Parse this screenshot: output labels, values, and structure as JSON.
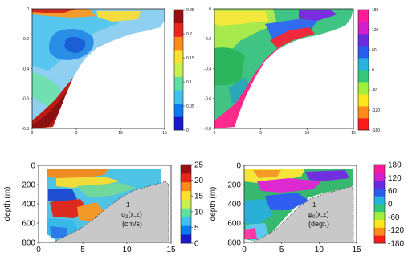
{
  "chart_data": [
    {
      "type": "heatmap",
      "xticks": [
        "0",
        "5",
        "10",
        "15"
      ],
      "yticks": [
        "0",
        "-0.2",
        "-0.4",
        "-0.6",
        "-0.8"
      ],
      "colorbar": {
        "ticks": [
          "0.25",
          "0.2",
          "0.15",
          "0.1",
          "0.05",
          "0"
        ],
        "vmin": 0,
        "vmax": 0.25
      },
      "colormap": [
        "#1a1acd",
        "#0c7bf0",
        "#41c0f0",
        "#5fe0a0",
        "#c8f050",
        "#ffe030",
        "#ff8c1a",
        "#e8261c",
        "#9a0f12"
      ],
      "xlim": [
        0,
        15
      ],
      "ylim": [
        -0.8,
        0
      ]
    },
    {
      "type": "heatmap",
      "xticks": [
        "0",
        "5",
        "10",
        "15"
      ],
      "yticks": [
        "0",
        "-0.2",
        "-0.4",
        "-0.6",
        "-0.8"
      ],
      "colorbar": {
        "ticks": [
          "180",
          "120",
          "60",
          "0",
          "-60",
          "-120",
          "-180"
        ],
        "vmin": -180,
        "vmax": 180
      },
      "colormap": [
        "#ff1a1a",
        "#ff8c1a",
        "#ffe61a",
        "#a0ef3c",
        "#34c77b",
        "#27b3e0",
        "#2a5cf0",
        "#6a2ae0",
        "#d21ecd",
        "#ff1a9c"
      ],
      "xlim": [
        0,
        15
      ],
      "ylim": [
        -0.8,
        0
      ]
    },
    {
      "type": "heatmap",
      "annotation": [
        "1",
        "u",
        "2",
        "(x,z)",
        "(cm/s)"
      ],
      "ylabel": "depth (m)",
      "xticks": [
        "0",
        "5",
        "10",
        "15"
      ],
      "yticks": [
        "0",
        "200",
        "400",
        "600",
        "800"
      ],
      "colorbar": {
        "ticks": [
          "25",
          "20",
          "15",
          "10",
          "5",
          "0"
        ],
        "vmin": 0,
        "vmax": 25
      },
      "colormap": [
        "#1a1acd",
        "#0c7bf0",
        "#41c0f0",
        "#5fe0a0",
        "#c8f050",
        "#ffe030",
        "#ff8c1a",
        "#e8261c",
        "#9a0f12"
      ],
      "xlim": [
        0,
        15
      ],
      "ylim": [
        800,
        0
      ]
    },
    {
      "type": "heatmap",
      "annotation": [
        "1",
        "φ",
        "0",
        "(x,z)",
        "(degr.)"
      ],
      "ylabel": "depth (m)",
      "xticks": [
        "0",
        "5",
        "10",
        "15"
      ],
      "yticks": [
        "0",
        "200",
        "400",
        "600",
        "800"
      ],
      "colorbar": {
        "ticks": [
          "180",
          "120",
          "60",
          "0",
          "-60",
          "-120",
          "-180"
        ],
        "vmin": -180,
        "vmax": 180
      },
      "colormap": [
        "#ff1a1a",
        "#ff8c1a",
        "#ffe61a",
        "#a0ef3c",
        "#34c77b",
        "#27b3e0",
        "#2a5cf0",
        "#6a2ae0",
        "#d21ecd",
        "#ff1a9c"
      ],
      "xlim": [
        0,
        15
      ],
      "ylim": [
        800,
        0
      ]
    }
  ]
}
